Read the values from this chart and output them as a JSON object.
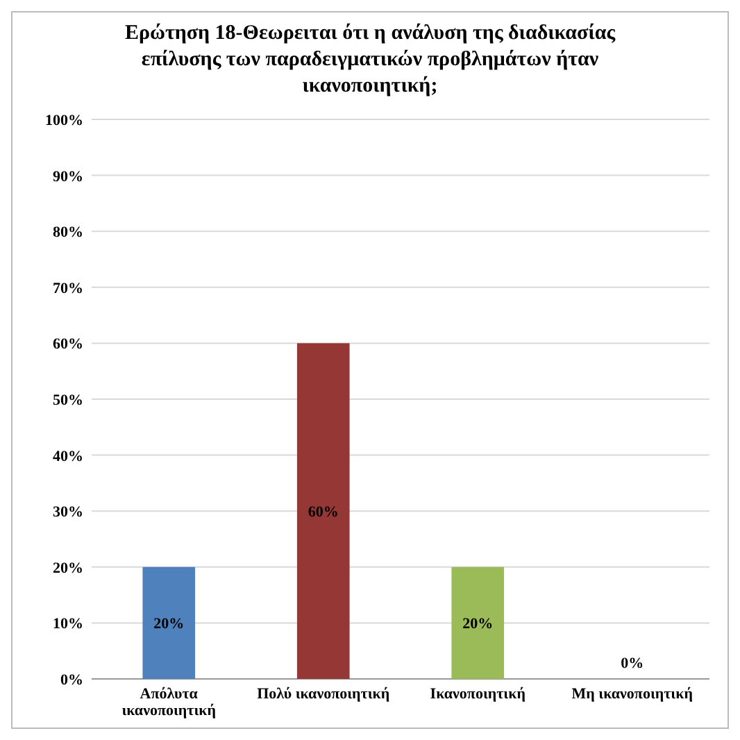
{
  "chart_data": {
    "type": "bar",
    "title": "Ερώτηση 18-Θεωρειται ότι η ανάλυση της διαδικασίας επίλυσης των παραδειγματικών προβλημάτων ήταν ικανοποιητική;",
    "categories": [
      "Απόλυτα ικανοποιητική",
      "Πολύ ικανοποιητική",
      "Ικανοποιητική",
      "Μη ικανοποιητική"
    ],
    "values": [
      20,
      60,
      20,
      0
    ],
    "colors": [
      "#4f81bd",
      "#953735",
      "#9bbb59",
      "#8064a2"
    ],
    "value_labels": [
      "20%",
      "60%",
      "20%",
      "0%"
    ],
    "ylim": [
      0,
      100
    ],
    "yticks": [
      {
        "value": 0,
        "label": "0%"
      },
      {
        "value": 10,
        "label": "10%"
      },
      {
        "value": 20,
        "label": "20%"
      },
      {
        "value": 30,
        "label": "30%"
      },
      {
        "value": 40,
        "label": "40%"
      },
      {
        "value": 50,
        "label": "50%"
      },
      {
        "value": 60,
        "label": "60%"
      },
      {
        "value": 70,
        "label": "70%"
      },
      {
        "value": 80,
        "label": "80%"
      },
      {
        "value": 90,
        "label": "90%"
      },
      {
        "value": 100,
        "label": "100%"
      }
    ],
    "grid": "y"
  }
}
